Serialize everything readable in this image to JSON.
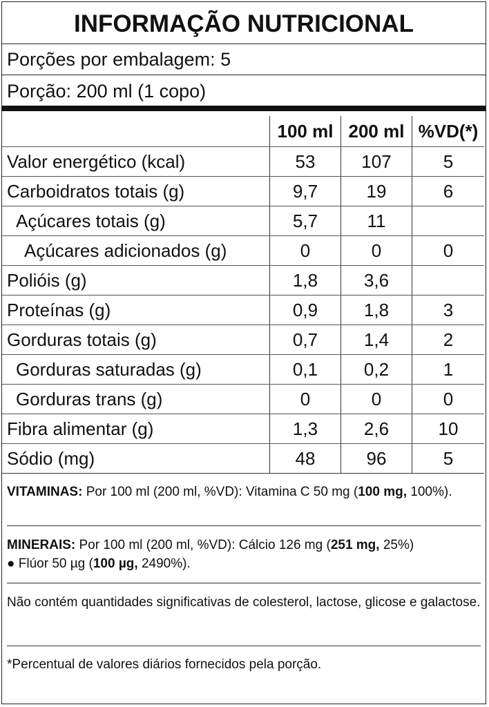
{
  "header": {
    "title": "INFORMAÇÃO NUTRICIONAL",
    "servings": "Porções por embalagem: 5",
    "portion": "Porção: 200 ml (1 copo)"
  },
  "table": {
    "columns": [
      "100 ml",
      "200 ml",
      "%VD(*)"
    ],
    "rows": [
      [
        "Valor energético (kcal)",
        "53",
        "107",
        "5"
      ],
      [
        "Carboidratos totais (g)",
        "9,7",
        "19",
        "6"
      ],
      [
        "Açúcares totais (g)",
        "5,7",
        "11",
        null
      ],
      [
        "Açúcares adicionados (g)",
        "0",
        "0",
        "0"
      ],
      [
        "Polióis (g)",
        "1,8",
        "3,6",
        null
      ],
      [
        "Proteínas (g)",
        "0,9",
        "1,8",
        "3"
      ],
      [
        "Gorduras totais (g)",
        "0,7",
        "1,4",
        "2"
      ],
      [
        "Gorduras saturadas (g)",
        "0,1",
        "0,2",
        "1"
      ],
      [
        "Gorduras trans (g)",
        "0",
        "0",
        "0"
      ],
      [
        "Fibra alimentar (g)",
        "1,3",
        "2,6",
        "10"
      ],
      [
        "Sódio (mg)",
        "48",
        "96",
        "5"
      ]
    ]
  },
  "vitamins": [
    "VITAMINAS:",
    "Por 100 ml (200 ml, %VD): Vitamina C 50 mg (",
    "100 mg,",
    "100%)."
  ],
  "minerals": [
    "MINERAIS:",
    "Por 100 ml (200 ml, %VD): Cálcio 126 mg (",
    "251 mg,",
    "25%)",
    "● Flúor 50 µg (",
    "100 µg,",
    "2490%)."
  ],
  "note": "Não contém quantidades significativas de colesterol, lactose, glicose e galactose.",
  "footnote": "*Percentual de valores diários fornecidos pela porção."
}
